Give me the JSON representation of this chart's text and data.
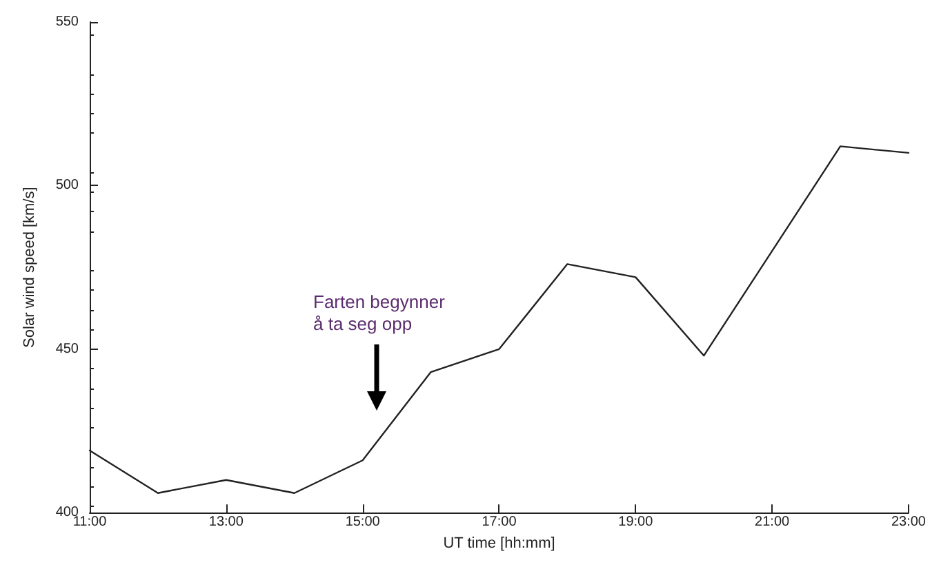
{
  "chart_data": {
    "type": "line",
    "xlabel": "UT time [hh:mm]",
    "ylabel": "Solar wind speed [km/s]",
    "x": [
      11,
      12,
      13,
      14,
      15,
      16,
      17,
      18,
      19,
      20,
      21,
      22,
      23
    ],
    "series": [
      {
        "color": "#222222",
        "values": [
          419,
          406,
          410,
          406,
          416,
          443,
          450,
          476,
          472,
          448,
          480,
          512,
          510
        ]
      }
    ],
    "xlim": [
      11,
      23
    ],
    "xticks": [
      {
        "value": 11,
        "label": "11:00"
      },
      {
        "value": 13,
        "label": "13:00"
      },
      {
        "value": 15,
        "label": "15:00"
      },
      {
        "value": 17,
        "label": "17:00"
      },
      {
        "value": 19,
        "label": "19:00"
      },
      {
        "value": 21,
        "label": "21:00"
      },
      {
        "value": 23,
        "label": "23:00"
      }
    ],
    "ylim": [
      400,
      550
    ],
    "yticks": [
      400,
      450,
      500,
      550
    ],
    "annotations": [
      "Farten begynner\nå ta seg opp"
    ],
    "marker": "none",
    "line_style": "solid",
    "grid": false
  }
}
